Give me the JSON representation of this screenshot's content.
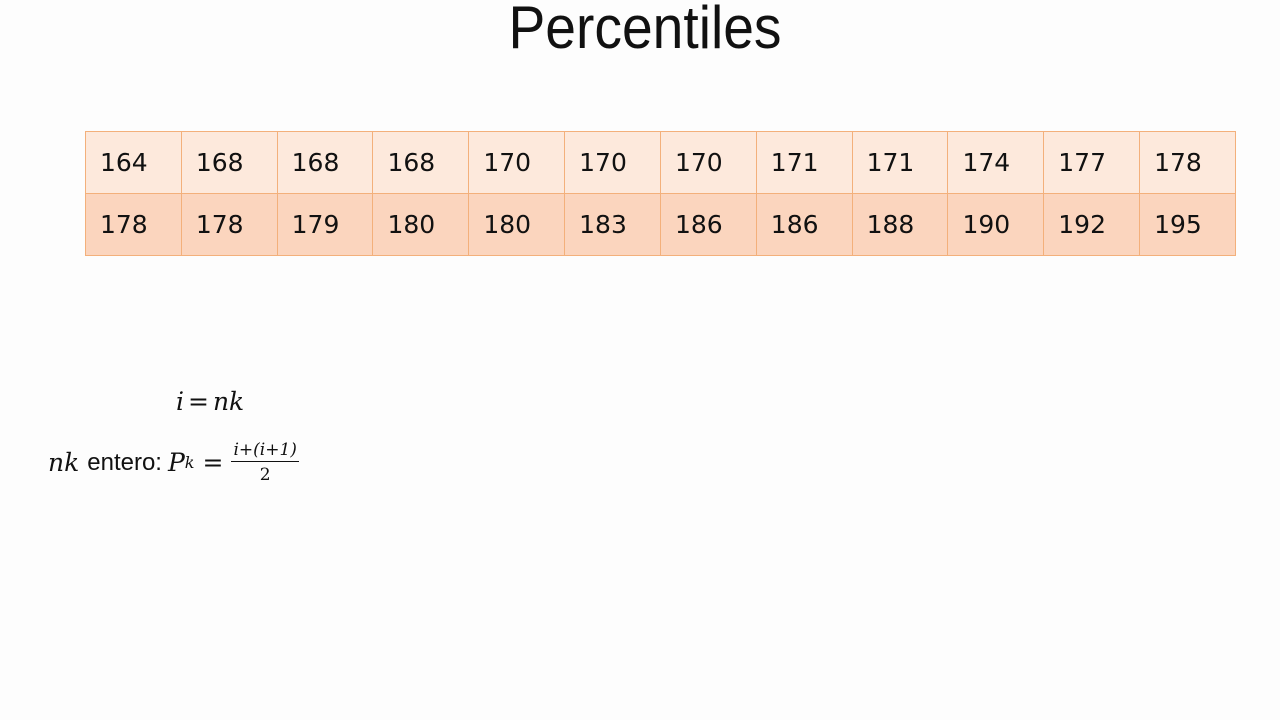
{
  "slide": {
    "title": "Percentiles"
  },
  "table": {
    "rows": [
      [
        "164",
        "168",
        "168",
        "168",
        "170",
        "170",
        "170",
        "171",
        "171",
        "174",
        "177",
        "178"
      ],
      [
        "178",
        "178",
        "179",
        "180",
        "180",
        "183",
        "186",
        "186",
        "188",
        "190",
        "192",
        "195"
      ]
    ]
  },
  "formulas": {
    "f1_left": "i",
    "f1_op": "=",
    "f1_right": "nk",
    "f2_var": "nk",
    "f2_word": "entero:",
    "f2_p": "P",
    "f2_sub": "k",
    "f2_op": "=",
    "f2_num": "i+(i+1)",
    "f2_den": "2"
  },
  "colors": {
    "cell_border": "#f3b07b",
    "row_a_fill": "#fde9dc",
    "row_b_fill": "#fbd5be"
  }
}
